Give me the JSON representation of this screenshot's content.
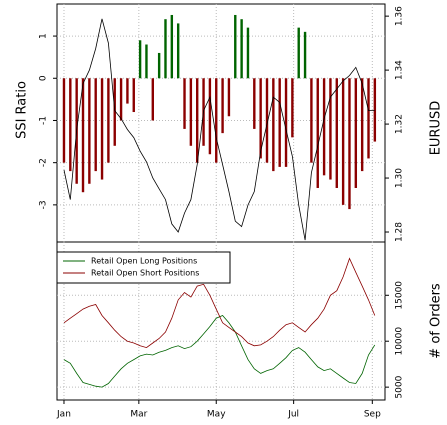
{
  "chart_data": [
    {
      "type": "bar",
      "ylabel": "SSI Ratio",
      "y2label": "EURUSD",
      "x": [
        1,
        6,
        11,
        16,
        21,
        26,
        31,
        36,
        41,
        46,
        51,
        56,
        61,
        66,
        71,
        76,
        81,
        86,
        91,
        96,
        101,
        106,
        111,
        116,
        121,
        126,
        131,
        136,
        141,
        146,
        151,
        156,
        161,
        166,
        171,
        176,
        181,
        186,
        191,
        196,
        201,
        206,
        211,
        216,
        221,
        226,
        231,
        236,
        241,
        246
      ],
      "xlim": [
        -4.5,
        254
      ],
      "xticks": [
        1,
        60,
        121,
        182,
        244
      ],
      "ylim": [
        -3.88,
        1.76
      ],
      "yticks": [
        -3,
        -2,
        -1,
        0,
        1
      ],
      "y2lim": [
        1.2763,
        1.3645
      ],
      "y2ticks": [
        1.28,
        {
          "value": 1.3,
          "label": "1.30"
        },
        1.32,
        1.34,
        1.36
      ],
      "grid": true,
      "series": [
        {
          "type": "bar",
          "color": "#006400",
          "negative_color": "#8b0000",
          "values": [
            -2.0,
            -2.2,
            -2.5,
            -2.7,
            -2.5,
            -2.2,
            -2.4,
            -2.0,
            -1.6,
            -1.0,
            -0.6,
            -0.8,
            0.9,
            0.8,
            -1.0,
            0.6,
            1.4,
            1.5,
            1.3,
            -1.2,
            -1.6,
            -2.0,
            -1.6,
            -1.8,
            -2.0,
            -1.3,
            -0.9,
            1.5,
            1.4,
            1.2,
            -1.2,
            -1.9,
            -2.0,
            -2.2,
            -2.1,
            -2.1,
            -1.4,
            1.2,
            1.1,
            -2.0,
            -2.6,
            -2.3,
            -2.4,
            -2.6,
            -3.0,
            -3.1,
            -2.6,
            -2.2,
            -1.9,
            -1.5
          ]
        },
        {
          "type": "line",
          "axis": "y2",
          "color": "#000000",
          "values": [
            1.303,
            1.292,
            1.318,
            1.335,
            1.34,
            1.348,
            1.359,
            1.35,
            1.325,
            1.322,
            1.318,
            1.315,
            1.31,
            1.306,
            1.3,
            1.296,
            1.292,
            1.283,
            1.28,
            1.287,
            1.292,
            1.305,
            1.325,
            1.33,
            1.315,
            1.305,
            1.295,
            1.284,
            1.282,
            1.29,
            1.295,
            1.31,
            1.32,
            1.33,
            1.328,
            1.318,
            1.308,
            1.29,
            1.277,
            1.302,
            1.312,
            1.322,
            1.33,
            1.333,
            1.336,
            1.338,
            1.341,
            1.335,
            1.325,
            1.325
          ]
        }
      ]
    },
    {
      "type": "line",
      "ylabel": "# of Orders",
      "y_axis_side": "right",
      "legend": "top-left",
      "x": [
        1,
        6,
        11,
        16,
        21,
        26,
        31,
        36,
        41,
        46,
        51,
        56,
        61,
        66,
        71,
        76,
        81,
        86,
        91,
        96,
        101,
        106,
        111,
        116,
        121,
        126,
        131,
        136,
        141,
        146,
        151,
        156,
        161,
        166,
        171,
        176,
        181,
        186,
        191,
        196,
        201,
        206,
        211,
        216,
        221,
        226,
        231,
        236,
        241,
        246
      ],
      "xlim": [
        -4.5,
        254
      ],
      "xticks": [
        {
          "value": 1,
          "label": "Jan"
        },
        {
          "value": 60,
          "label": "Mar"
        },
        {
          "value": 121,
          "label": "May"
        },
        {
          "value": 182,
          "label": "Jul"
        },
        {
          "value": 244,
          "label": "Sep"
        }
      ],
      "ylim": [
        3600,
        20800
      ],
      "yticks": [
        5000,
        10000,
        15000
      ],
      "grid": true,
      "series": [
        {
          "name": "Retail Open Long Positions",
          "color": "#006400",
          "values": [
            8000,
            7600,
            6500,
            5500,
            5300,
            5100,
            5000,
            5400,
            6200,
            7000,
            7600,
            8000,
            8400,
            8600,
            8500,
            8800,
            9000,
            9300,
            9500,
            9200,
            9400,
            10000,
            10800,
            11600,
            12500,
            12800,
            12000,
            11000,
            9500,
            8000,
            7000,
            6500,
            6800,
            7000,
            7600,
            8200,
            9000,
            9300,
            8800,
            8000,
            7200,
            6800,
            7000,
            6500,
            6000,
            5500,
            5400,
            6500,
            8500,
            9600
          ]
        },
        {
          "name": "Retail Open Short Positions",
          "color": "#8b0000",
          "values": [
            12000,
            12500,
            13000,
            13500,
            13800,
            14000,
            12800,
            12000,
            11200,
            10500,
            10000,
            9800,
            9500,
            9300,
            9800,
            10300,
            11000,
            12500,
            14500,
            15300,
            14800,
            16000,
            16200,
            15000,
            13500,
            12000,
            11500,
            11000,
            10500,
            9800,
            9500,
            9600,
            10000,
            10500,
            11200,
            11800,
            12000,
            11500,
            11000,
            11800,
            12500,
            13500,
            15000,
            15500,
            17000,
            19000,
            17500,
            16000,
            14500,
            12800
          ]
        }
      ]
    }
  ]
}
